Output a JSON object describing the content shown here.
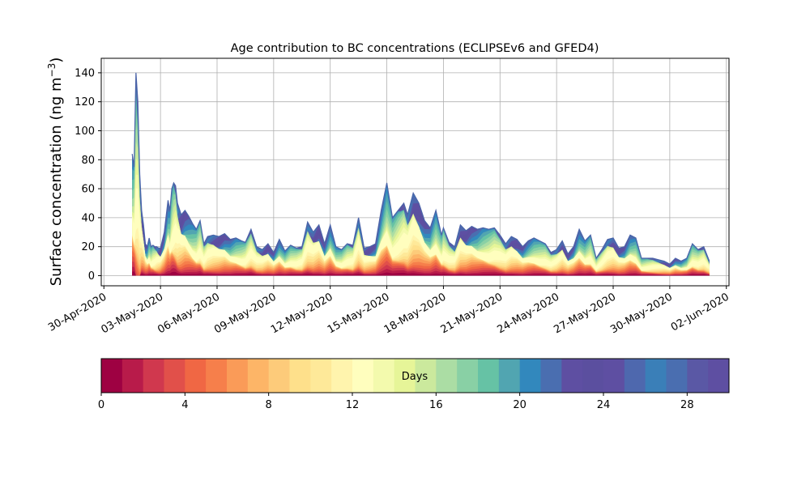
{
  "chart_data": {
    "type": "area",
    "title": "Age contribution to BC concentrations (ECLIPSEv6 and GFED4)",
    "ylabel": "Surface concentration (ng m⁻³)",
    "ylabel_main": "Surface concentration (ng m",
    "ylabel_sup": "−3",
    "ylabel_end": ")",
    "xlabel": "",
    "x_ticks": [
      "30-Apr-2020",
      "03-May-2020",
      "06-May-2020",
      "09-May-2020",
      "12-May-2020",
      "15-May-2020",
      "18-May-2020",
      "21-May-2020",
      "24-May-2020",
      "27-May-2020",
      "30-May-2020",
      "02-Jun-2020"
    ],
    "x_tick_days": [
      0,
      3,
      6,
      9,
      12,
      15,
      18,
      21,
      24,
      27,
      30,
      33
    ],
    "xlim_days": [
      -0.14,
      33.14
    ],
    "y_ticks": [
      0,
      20,
      40,
      60,
      80,
      100,
      120,
      140
    ],
    "ylim": [
      -7,
      150
    ],
    "grid": true,
    "stacked": true,
    "series_count": 30,
    "total": {
      "x_days": [
        1.5,
        1.6,
        1.7,
        1.8,
        1.9,
        2.0,
        2.1,
        2.2,
        2.3,
        2.4,
        2.5,
        2.6,
        2.7,
        2.8,
        2.9,
        3.0,
        3.2,
        3.4,
        3.5,
        3.6,
        3.7,
        3.8,
        3.9,
        4.0,
        4.1,
        4.3,
        4.5,
        4.7,
        4.9,
        5.1,
        5.3,
        5.5,
        5.8,
        6.1,
        6.4,
        6.7,
        7.0,
        7.3,
        7.5,
        7.8,
        8.1,
        8.4,
        8.7,
        9.0,
        9.3,
        9.6,
        9.9,
        10.2,
        10.5,
        10.8,
        11.1,
        11.4,
        11.7,
        12.0,
        12.3,
        12.6,
        12.9,
        13.2,
        13.5,
        13.8,
        14.1,
        14.4,
        14.7,
        15.0,
        15.3,
        15.6,
        15.9,
        16.1,
        16.4,
        16.7,
        17.0,
        17.3,
        17.6,
        17.9,
        18.0,
        18.3,
        18.6,
        18.9,
        19.2,
        19.5,
        19.8,
        20.1,
        20.4,
        20.7,
        21.0,
        21.3,
        21.6,
        21.9,
        22.2,
        22.5,
        22.8,
        23.1,
        23.4,
        23.7,
        24.0,
        24.3,
        24.6,
        24.9,
        25.2,
        25.5,
        25.8,
        26.1,
        26.4,
        26.7,
        27.0,
        27.3,
        27.6,
        27.9,
        28.2,
        28.5,
        28.8,
        29.1,
        29.4,
        29.7,
        30.0,
        30.3,
        30.6,
        30.9,
        31.2,
        31.5,
        31.8,
        32.1
      ],
      "values": [
        84,
        75,
        140,
        120,
        70,
        45,
        35,
        22,
        20,
        26,
        20,
        21,
        20,
        20,
        19,
        19,
        30,
        52,
        45,
        60,
        64,
        62,
        50,
        46,
        42,
        45,
        41,
        36,
        32,
        38,
        22,
        27,
        28,
        27,
        29,
        25,
        26,
        24,
        23,
        32,
        20,
        18,
        22,
        16,
        25,
        17,
        21,
        19,
        20,
        37,
        30,
        35,
        22,
        35,
        20,
        18,
        22,
        21,
        40,
        19,
        20,
        22,
        45,
        64,
        40,
        45,
        50,
        42,
        57,
        50,
        38,
        33,
        45,
        28,
        33,
        23,
        20,
        35,
        31,
        34,
        32,
        33,
        32,
        33,
        28,
        22,
        27,
        25,
        20,
        24,
        26,
        24,
        22,
        16,
        18,
        24,
        15,
        20,
        32,
        24,
        28,
        12,
        18,
        25,
        26,
        19,
        20,
        28,
        26,
        12,
        12,
        12,
        11,
        10,
        8,
        12,
        10,
        12,
        22,
        18,
        20,
        10
      ]
    },
    "colorbar": {
      "label": "Days",
      "min": 0,
      "max": 30,
      "ticks": [
        0,
        4,
        8,
        12,
        16,
        20,
        24,
        28
      ],
      "colors": [
        "#9e0142",
        "#b81b4a",
        "#d0384e",
        "#e1504a",
        "#f06744",
        "#f67f4b",
        "#fa9b58",
        "#fdb567",
        "#fdcb7a",
        "#fee08b",
        "#fee999",
        "#fff4ad",
        "#fffebe",
        "#f3faad",
        "#e6f598",
        "#cbe99d",
        "#abdda4",
        "#89d0a5",
        "#66c2a5",
        "#51a5b1",
        "#3288bd",
        "#4a6eb0",
        "#5e4fa2",
        "#5b4f9f",
        "#5e4fa2",
        "#4e68ae",
        "#3a7fb8",
        "#4a6eb0",
        "#5a58a5",
        "#5e4fa2"
      ]
    }
  }
}
